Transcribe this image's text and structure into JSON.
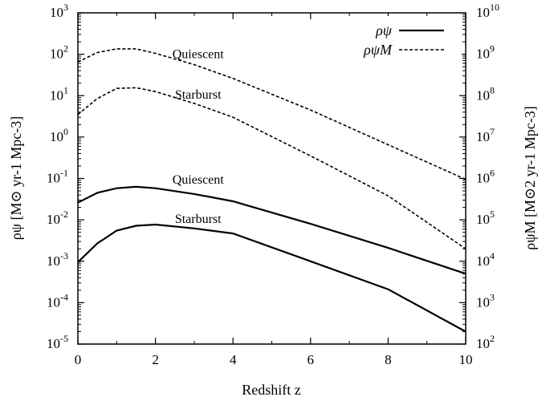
{
  "chart_data": {
    "type": "line",
    "title": "",
    "xlabel": "Redshift z",
    "ylabel_left": "ρψ [M⊙ yr-1 Mpc-3]",
    "ylabel_right": "ρψM [M⊙2 yr-1 Mpc-3]",
    "xlim": [
      0,
      10
    ],
    "ylim_left": [
      1e-05,
      1000
    ],
    "ylim_right": [
      100,
      10000000000
    ],
    "yscale": "log",
    "x_ticks": [
      "0",
      "2",
      "4",
      "6",
      "8",
      "10"
    ],
    "y_left_ticks": [
      {
        "base": "10",
        "exp": "-5"
      },
      {
        "base": "10",
        "exp": "-4"
      },
      {
        "base": "10",
        "exp": "-3"
      },
      {
        "base": "10",
        "exp": "-2"
      },
      {
        "base": "10",
        "exp": "-1"
      },
      {
        "base": "10",
        "exp": "0"
      },
      {
        "base": "10",
        "exp": "1"
      },
      {
        "base": "10",
        "exp": "2"
      },
      {
        "base": "10",
        "exp": "3"
      }
    ],
    "y_right_ticks": [
      {
        "base": "10",
        "exp": "2"
      },
      {
        "base": "10",
        "exp": "3"
      },
      {
        "base": "10",
        "exp": "4"
      },
      {
        "base": "10",
        "exp": "5"
      },
      {
        "base": "10",
        "exp": "6"
      },
      {
        "base": "10",
        "exp": "7"
      },
      {
        "base": "10",
        "exp": "8"
      },
      {
        "base": "10",
        "exp": "9"
      },
      {
        "base": "10",
        "exp": "10"
      }
    ],
    "legend": {
      "placement": "top-right",
      "entries": [
        {
          "label": "ρψ",
          "style": "solid"
        },
        {
          "label": "ρψM",
          "style": "dashed"
        }
      ]
    },
    "series": [
      {
        "name": "Quiescent ρψ",
        "axis": "left",
        "style": "solid",
        "x": [
          0,
          0.5,
          1,
          1.5,
          2,
          3,
          4,
          6,
          8,
          10
        ],
        "y": [
          0.026,
          0.045,
          0.058,
          0.063,
          0.058,
          0.042,
          0.028,
          0.008,
          0.0021,
          0.0005
        ]
      },
      {
        "name": "Starburst ρψ",
        "axis": "left",
        "style": "solid",
        "x": [
          0,
          0.5,
          1,
          1.5,
          2,
          3,
          4,
          6,
          8,
          10
        ],
        "y": [
          0.00095,
          0.0027,
          0.0055,
          0.0072,
          0.0077,
          0.0062,
          0.0047,
          0.001,
          0.00021,
          2e-05
        ]
      },
      {
        "name": "Quiescent ρψM",
        "axis": "right",
        "style": "dashed",
        "x": [
          0,
          0.5,
          1,
          1.5,
          2,
          3,
          4,
          6,
          8,
          10
        ],
        "y": [
          650000000,
          1100000000,
          1350000000,
          1350000000,
          1050000000,
          560000000,
          260000000,
          45000000,
          6500000,
          950000
        ]
      },
      {
        "name": "Starburst ρψM",
        "axis": "right",
        "style": "dashed",
        "x": [
          0,
          0.5,
          1,
          1.5,
          2,
          3,
          4,
          6,
          8,
          10
        ],
        "y": [
          35000000,
          85000000,
          150000000,
          155000000,
          125000000,
          65000000,
          30000000,
          3500000,
          380000,
          20000
        ]
      }
    ],
    "annotations": [
      {
        "text": "Quiescent",
        "x": 3.1,
        "y": 80,
        "axis": "left"
      },
      {
        "text": "Starburst",
        "x": 3.1,
        "y": 8.5,
        "axis": "left"
      },
      {
        "text": "Quiescent",
        "x": 3.1,
        "y": 0.075,
        "axis": "left"
      },
      {
        "text": "Starburst",
        "x": 3.1,
        "y": 0.0085,
        "axis": "left"
      }
    ]
  }
}
